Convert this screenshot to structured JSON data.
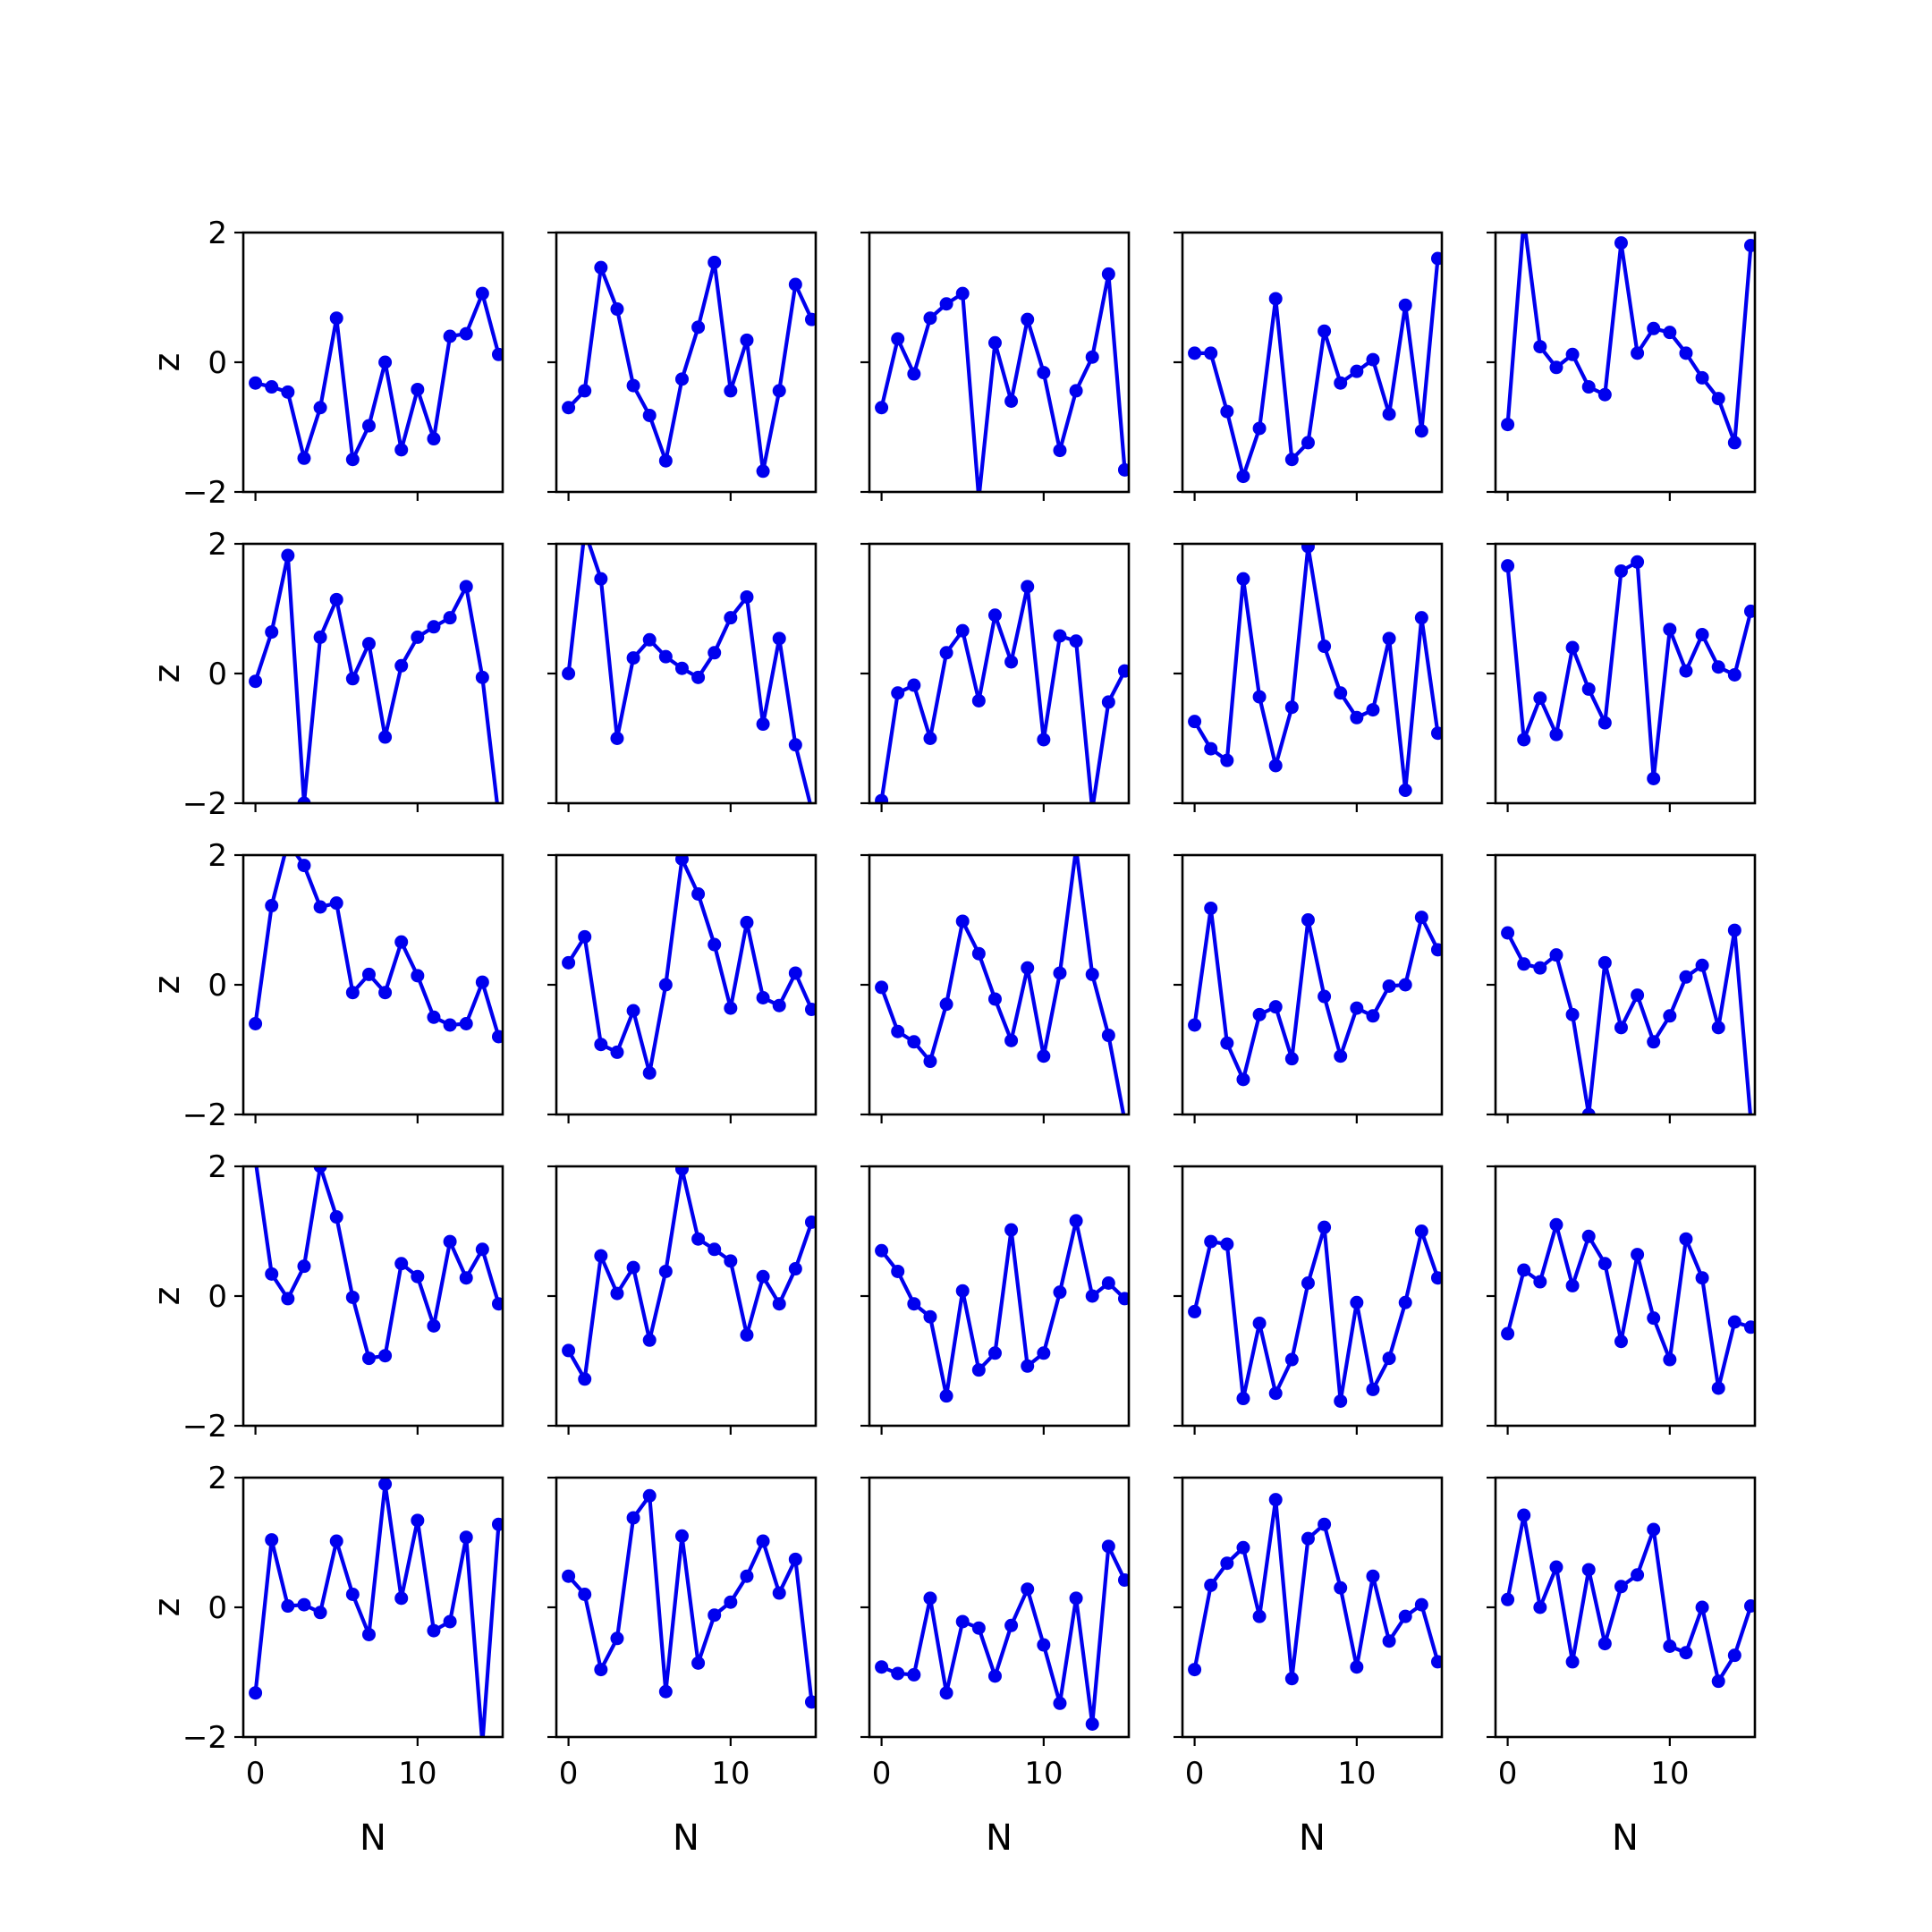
{
  "chart_data": {
    "type": "line",
    "layout": "5x5 grid of small multiples",
    "shared_axes": true,
    "xlabel": "N",
    "ylabel": "z",
    "xlim": [
      -0.75,
      15.25
    ],
    "ylim": [
      -2,
      2
    ],
    "xticks": [
      0,
      10
    ],
    "yticks": [
      -2,
      0,
      2
    ],
    "xtick_labels": [
      "0",
      "10"
    ],
    "ytick_labels": [
      "−2",
      "0",
      "2"
    ],
    "x": [
      0,
      1,
      2,
      3,
      4,
      5,
      6,
      7,
      8,
      9,
      10,
      11,
      12,
      13,
      14,
      15
    ],
    "line_color": "#0000ee",
    "marker": "circle",
    "grid": false,
    "legend": "none",
    "panels": [
      [
        -0.32,
        -0.38,
        -0.46,
        -1.48,
        -0.7,
        0.68,
        -1.5,
        -0.98,
        0.0,
        -1.35,
        -0.42,
        -1.18,
        0.4,
        0.44,
        1.06,
        0.12
      ],
      [
        -0.7,
        -0.44,
        1.46,
        0.82,
        -0.36,
        -0.82,
        -1.52,
        -0.26,
        0.54,
        1.54,
        -0.44,
        0.34,
        -1.68,
        -0.44,
        1.2,
        0.66
      ],
      [
        -0.7,
        0.36,
        -0.18,
        0.68,
        0.9,
        1.06,
        -2.1,
        0.3,
        -0.6,
        0.66,
        -0.16,
        -1.36,
        -0.44,
        0.08,
        1.36,
        -1.66
      ],
      [
        0.14,
        0.14,
        -0.76,
        -1.76,
        -1.02,
        0.98,
        -1.5,
        -1.24,
        0.48,
        -0.32,
        -0.14,
        0.04,
        -0.8,
        0.88,
        -1.06,
        1.6
      ],
      [
        -0.96,
        2.2,
        0.24,
        -0.08,
        0.12,
        -0.38,
        -0.5,
        1.84,
        0.14,
        0.52,
        0.46,
        0.14,
        -0.24,
        -0.56,
        -1.24,
        1.8
      ],
      [
        -0.12,
        0.64,
        1.82,
        -2.0,
        0.56,
        1.14,
        -0.08,
        0.46,
        -0.98,
        0.12,
        0.56,
        0.72,
        0.86,
        1.34,
        -0.06,
        -2.2
      ],
      [
        0.0,
        2.2,
        1.46,
        -1.0,
        0.24,
        0.52,
        0.26,
        0.08,
        -0.06,
        0.32,
        0.86,
        1.18,
        -0.78,
        0.54,
        -1.1,
        -2.1
      ],
      [
        -1.96,
        -0.3,
        -0.18,
        -1.0,
        0.32,
        0.66,
        -0.42,
        0.9,
        0.18,
        1.34,
        -1.02,
        0.58,
        0.5,
        -2.1,
        -0.44,
        0.04
      ],
      [
        -0.74,
        -1.16,
        -1.34,
        1.46,
        -0.36,
        -1.42,
        -0.52,
        1.96,
        0.42,
        -0.3,
        -0.68,
        -0.56,
        0.54,
        -1.8,
        0.86,
        -0.92
      ],
      [
        1.66,
        -1.02,
        -0.38,
        -0.94,
        0.4,
        -0.24,
        -0.76,
        1.58,
        1.72,
        -1.62,
        0.68,
        0.04,
        0.6,
        0.1,
        -0.02,
        0.96
      ],
      [
        -0.6,
        1.22,
        2.2,
        1.84,
        1.2,
        1.26,
        -0.12,
        0.16,
        -0.12,
        0.66,
        0.14,
        -0.5,
        -0.62,
        -0.6,
        0.04,
        -0.8
      ],
      [
        0.34,
        0.74,
        -0.92,
        -1.04,
        -0.4,
        -1.36,
        0.0,
        1.94,
        1.4,
        0.62,
        -0.36,
        0.96,
        -0.2,
        -0.32,
        0.18,
        -0.38
      ],
      [
        -0.04,
        -0.72,
        -0.88,
        -1.18,
        -0.3,
        0.98,
        0.48,
        -0.22,
        -0.86,
        0.26,
        -1.1,
        0.18,
        2.1,
        0.16,
        -0.78,
        -2.1
      ],
      [
        -0.62,
        1.18,
        -0.9,
        -1.46,
        -0.46,
        -0.34,
        -1.14,
        1.0,
        -0.18,
        -1.1,
        -0.36,
        -0.48,
        -0.02,
        0.0,
        1.04,
        0.54
      ],
      [
        0.8,
        0.32,
        0.26,
        0.46,
        -0.46,
        -2.0,
        0.34,
        -0.66,
        -0.16,
        -0.88,
        -0.48,
        0.12,
        0.3,
        -0.66,
        0.84,
        -2.1
      ],
      [
        2.1,
        0.34,
        -0.04,
        0.46,
        2.0,
        1.22,
        -0.02,
        -0.96,
        -0.92,
        0.5,
        0.3,
        -0.46,
        0.84,
        0.28,
        0.72,
        -0.12
      ],
      [
        -0.84,
        -1.28,
        0.62,
        0.04,
        0.44,
        -0.68,
        0.38,
        1.96,
        0.88,
        0.72,
        0.54,
        -0.6,
        0.3,
        -0.12,
        0.42,
        1.14
      ],
      [
        0.7,
        0.38,
        -0.12,
        -0.32,
        -1.54,
        0.08,
        -1.14,
        -0.88,
        1.02,
        -1.08,
        -0.88,
        0.06,
        1.16,
        0.0,
        0.2,
        -0.04
      ],
      [
        -0.24,
        0.84,
        0.8,
        -1.58,
        -0.42,
        -1.5,
        -0.98,
        0.2,
        1.06,
        -1.62,
        -0.1,
        -1.44,
        -0.96,
        -0.1,
        1.0,
        0.28
      ],
      [
        -0.58,
        0.4,
        0.22,
        1.1,
        0.16,
        0.92,
        0.5,
        -0.7,
        0.64,
        -0.34,
        -0.98,
        0.88,
        0.28,
        -1.42,
        -0.4,
        -0.48
      ],
      [
        -1.32,
        1.04,
        0.02,
        0.04,
        -0.08,
        1.02,
        0.2,
        -0.42,
        1.9,
        0.14,
        1.34,
        -0.36,
        -0.22,
        1.08,
        -2.1,
        1.28
      ],
      [
        0.48,
        0.2,
        -0.96,
        -0.48,
        1.38,
        1.72,
        -1.3,
        1.1,
        -0.86,
        -0.12,
        0.08,
        0.48,
        1.02,
        0.22,
        0.74,
        -1.46
      ],
      [
        -0.92,
        -1.02,
        -1.04,
        0.14,
        -1.32,
        -0.22,
        -0.32,
        -1.06,
        -0.28,
        0.28,
        -0.58,
        -1.48,
        0.14,
        -1.8,
        0.94,
        0.42
      ],
      [
        -0.96,
        0.34,
        0.68,
        0.92,
        -0.14,
        1.66,
        -1.1,
        1.06,
        1.28,
        0.3,
        -0.92,
        0.48,
        -0.52,
        -0.14,
        0.04,
        -0.84
      ],
      [
        0.12,
        1.42,
        0.0,
        0.62,
        -0.84,
        0.58,
        -0.56,
        0.32,
        0.5,
        1.2,
        -0.6,
        -0.7,
        0.0,
        -1.14,
        -0.74,
        0.02
      ]
    ]
  }
}
